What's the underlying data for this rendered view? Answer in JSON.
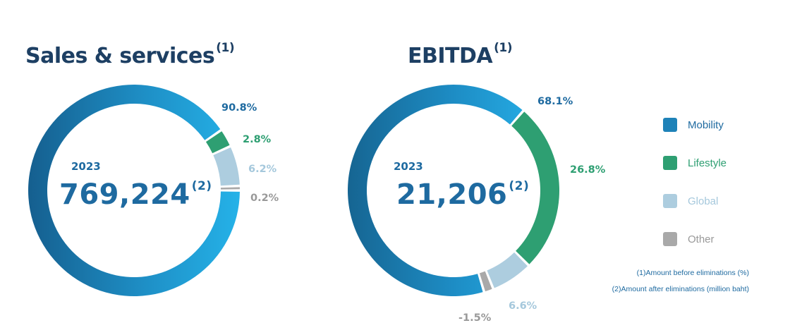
{
  "colors": {
    "mobility": "#1e92c9",
    "lifestyle": "#2e9f72",
    "global": "#adcddf",
    "other": "#a9a9a9",
    "title": "#1d3f63",
    "value": "#1e6aa0"
  },
  "legend": [
    {
      "label": "Mobility",
      "color": "#1e82b8"
    },
    {
      "label": "Lifestyle",
      "color": "#2e9f72"
    },
    {
      "label": "Global",
      "color": "#adcddf"
    },
    {
      "label": "Other",
      "color": "#a9a9a9"
    }
  ],
  "footnotes": {
    "note1": "(1)Amount before eliminations (%)",
    "note2": "(2)Amount after eliminations (million baht)"
  },
  "chart_data": [
    {
      "type": "pie",
      "title": "Sales & services",
      "title_marker": "(1)",
      "center_label": "2023",
      "center_value": "769,224",
      "center_marker": "(2)",
      "labels": [
        "Mobility",
        "Lifestyle",
        "Global",
        "Other"
      ],
      "values": [
        90.8,
        2.8,
        6.2,
        0.2
      ],
      "value_labels": [
        "90.8%",
        "2.8%",
        "6.2%",
        "0.2%"
      ]
    },
    {
      "type": "pie",
      "title": "EBITDA",
      "title_marker": "(1)",
      "center_label": "2023",
      "center_value": "21,206",
      "center_marker": "(2)",
      "labels": [
        "Mobility",
        "Lifestyle",
        "Global",
        "Other"
      ],
      "values": [
        68.1,
        26.8,
        6.6,
        -1.5
      ],
      "value_labels": [
        "68.1%",
        "26.8%",
        "6.6%",
        "-1.5%"
      ]
    }
  ]
}
